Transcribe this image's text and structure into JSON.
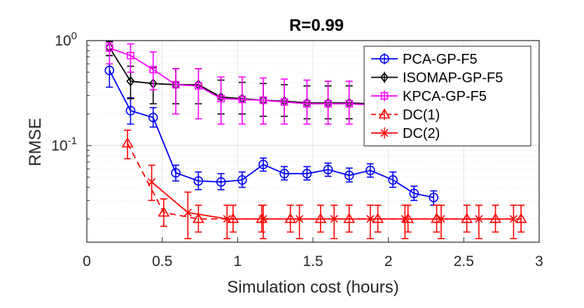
{
  "chart_data": {
    "type": "line",
    "title": "R=0.99",
    "xlabel": "Simulation cost (hours)",
    "ylabel": "RMSE",
    "xlim": [
      0,
      3
    ],
    "ylim": [
      0.012,
      1
    ],
    "yscale": "log",
    "grid": true,
    "legend_position": "top-right",
    "x_ticks": [
      0,
      0.5,
      1,
      1.5,
      2,
      2.5,
      3
    ],
    "x_tick_labels": [
      "0",
      "0.5",
      "1",
      "1.5",
      "2",
      "2.5",
      "3"
    ],
    "y_ticks": [
      {
        "value": 1,
        "base": "10",
        "exp": "0"
      },
      {
        "value": 0.1,
        "base": "10",
        "exp": "-1"
      }
    ],
    "series": [
      {
        "name": "PCA-GP-F5",
        "color": "#0000ff",
        "line": "solid",
        "marker": "circle",
        "x": [
          0.15,
          0.29,
          0.44,
          0.59,
          0.74,
          0.89,
          1.03,
          1.17,
          1.31,
          1.46,
          1.6,
          1.74,
          1.88,
          2.03,
          2.17,
          2.3
        ],
        "y": [
          0.52,
          0.215,
          0.185,
          0.055,
          0.046,
          0.045,
          0.047,
          0.066,
          0.054,
          0.054,
          0.059,
          0.052,
          0.058,
          0.047,
          0.035,
          0.032
        ],
        "err_low": [
          0.36,
          0.16,
          0.15,
          0.046,
          0.038,
          0.038,
          0.04,
          0.057,
          0.047,
          0.047,
          0.051,
          0.045,
          0.05,
          0.04,
          0.03,
          0.027
        ],
        "err_high": [
          0.72,
          0.285,
          0.23,
          0.065,
          0.056,
          0.054,
          0.056,
          0.076,
          0.063,
          0.063,
          0.068,
          0.061,
          0.067,
          0.056,
          0.041,
          0.037
        ]
      },
      {
        "name": "ISOMAP-GP-F5",
        "color": "#000000",
        "line": "solid",
        "marker": "diamond",
        "x": [
          0.15,
          0.29,
          0.44,
          0.59,
          0.74,
          0.89,
          1.03,
          1.17,
          1.31,
          1.46,
          1.6,
          1.74,
          1.88,
          2.03
        ],
        "y": [
          0.86,
          0.41,
          0.39,
          0.38,
          0.38,
          0.29,
          0.28,
          0.27,
          0.265,
          0.255,
          0.255,
          0.255,
          0.25,
          0.245
        ],
        "err_low": [
          0.72,
          0.28,
          0.25,
          0.25,
          0.25,
          0.2,
          0.2,
          0.19,
          0.19,
          0.18,
          0.18,
          0.18,
          0.18,
          0.18
        ],
        "err_high": [
          0.98,
          0.57,
          0.55,
          0.54,
          0.54,
          0.42,
          0.4,
          0.39,
          0.38,
          0.37,
          0.37,
          0.37,
          0.36,
          0.35
        ]
      },
      {
        "name": "KPCA-GP-F5",
        "color": "#ff00ff",
        "line": "solid",
        "marker": "square",
        "x": [
          0.15,
          0.29,
          0.44,
          0.59,
          0.74,
          0.89,
          1.03,
          1.17,
          1.31,
          1.46,
          1.6,
          1.74,
          1.88,
          2.03
        ],
        "y": [
          0.85,
          0.72,
          0.53,
          0.38,
          0.37,
          0.28,
          0.275,
          0.27,
          0.26,
          0.25,
          0.25,
          0.25,
          0.245,
          0.24
        ],
        "err_low": [
          0.6,
          0.5,
          0.34,
          0.2,
          0.18,
          0.16,
          0.16,
          0.16,
          0.16,
          0.16,
          0.16,
          0.16,
          0.16,
          0.16
        ],
        "err_high": [
          0.95,
          0.93,
          0.78,
          0.54,
          0.54,
          0.45,
          0.45,
          0.44,
          0.43,
          0.42,
          0.41,
          0.41,
          0.4,
          0.4
        ]
      },
      {
        "name": "DC(1)",
        "color": "#ff0000",
        "line": "dashed",
        "marker": "triangle",
        "x": [
          0.27,
          0.51,
          0.74,
          0.97,
          1.16,
          1.35,
          1.55,
          1.74,
          1.93,
          2.13,
          2.32,
          2.52,
          2.71,
          2.88
        ],
        "y": [
          0.105,
          0.023,
          0.02,
          0.02,
          0.02,
          0.02,
          0.02,
          0.02,
          0.02,
          0.02,
          0.02,
          0.02,
          0.02,
          0.02
        ],
        "err_low": [
          0.075,
          0.017,
          0.015,
          0.015,
          0.015,
          0.015,
          0.015,
          0.015,
          0.015,
          0.015,
          0.015,
          0.015,
          0.015,
          0.015
        ],
        "err_high": [
          0.14,
          0.031,
          0.027,
          0.027,
          0.027,
          0.027,
          0.027,
          0.027,
          0.027,
          0.027,
          0.027,
          0.027,
          0.027,
          0.027
        ]
      },
      {
        "name": "DC(2)",
        "color": "#ff0000",
        "line": "solid",
        "marker": "x",
        "x": [
          0.43,
          0.67,
          0.93,
          1.17,
          1.41,
          1.64,
          1.88,
          2.11,
          2.35,
          2.6,
          2.83
        ],
        "y": [
          0.045,
          0.023,
          0.02,
          0.02,
          0.02,
          0.02,
          0.02,
          0.02,
          0.02,
          0.02,
          0.02
        ],
        "err_low": [
          0.03,
          0.013,
          0.013,
          0.013,
          0.013,
          0.013,
          0.013,
          0.013,
          0.013,
          0.013,
          0.013
        ],
        "err_high": [
          0.065,
          0.036,
          0.027,
          0.027,
          0.027,
          0.027,
          0.027,
          0.027,
          0.027,
          0.027,
          0.027
        ]
      }
    ]
  }
}
